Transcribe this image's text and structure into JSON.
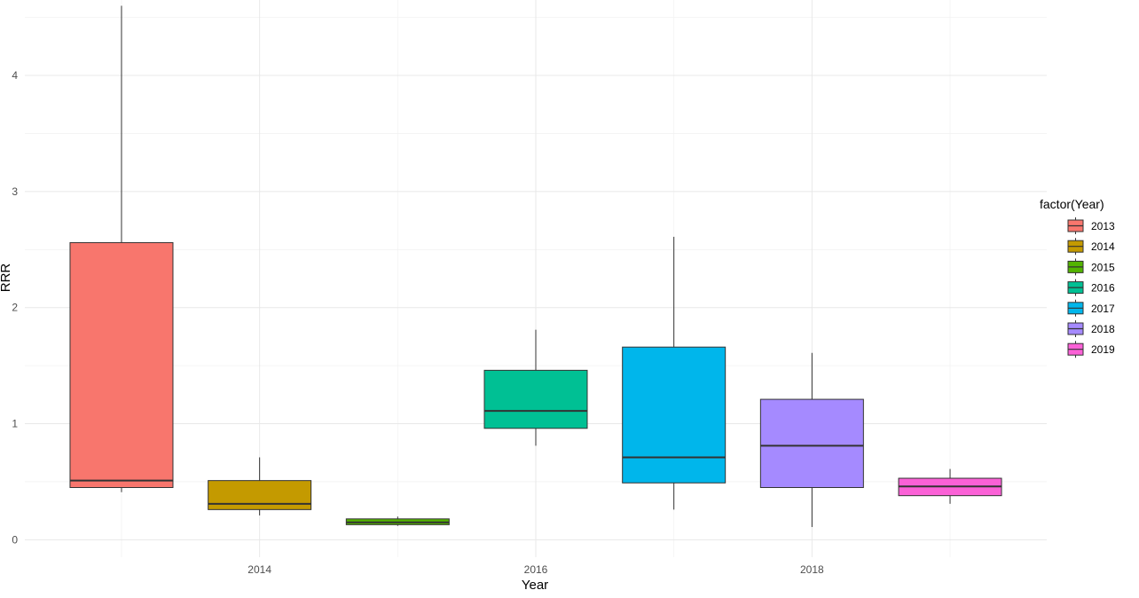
{
  "chart_data": {
    "type": "box",
    "xlabel": "Year",
    "ylabel": "RRR",
    "legend_title": "factor(Year)",
    "legend_position": "right",
    "grid": true,
    "xlim": [
      2012.3,
      2019.7
    ],
    "ylim": [
      -0.15,
      4.65
    ],
    "x_ticks": [
      2014,
      2016,
      2018
    ],
    "y_ticks": [
      0,
      1,
      2,
      3,
      4
    ],
    "x_tick_labels": [
      "2014",
      "2016",
      "2018"
    ],
    "y_tick_labels": [
      "0",
      "1",
      "2",
      "3",
      "4"
    ],
    "series": [
      {
        "name": "2013",
        "x": 2013,
        "color": "#F8766D",
        "min": 0.41,
        "q1": 0.45,
        "median": 0.51,
        "q3": 2.56,
        "max": 4.6
      },
      {
        "name": "2014",
        "x": 2014,
        "color": "#C49A00",
        "min": 0.21,
        "q1": 0.26,
        "median": 0.31,
        "q3": 0.51,
        "max": 0.71
      },
      {
        "name": "2015",
        "x": 2015,
        "color": "#53B400",
        "min": 0.12,
        "q1": 0.13,
        "median": 0.15,
        "q3": 0.18,
        "max": 0.2
      },
      {
        "name": "2016",
        "x": 2016,
        "color": "#00C094",
        "min": 0.81,
        "q1": 0.96,
        "median": 1.11,
        "q3": 1.46,
        "max": 1.81
      },
      {
        "name": "2017",
        "x": 2017,
        "color": "#00B6EB",
        "min": 0.26,
        "q1": 0.49,
        "median": 0.71,
        "q3": 1.66,
        "max": 2.61
      },
      {
        "name": "2018",
        "x": 2018,
        "color": "#A58AFF",
        "min": 0.11,
        "q1": 0.45,
        "median": 0.81,
        "q3": 1.21,
        "max": 1.61
      },
      {
        "name": "2019",
        "x": 2019,
        "color": "#FB61D7",
        "min": 0.31,
        "q1": 0.38,
        "median": 0.46,
        "q3": 0.53,
        "max": 0.61
      }
    ]
  }
}
